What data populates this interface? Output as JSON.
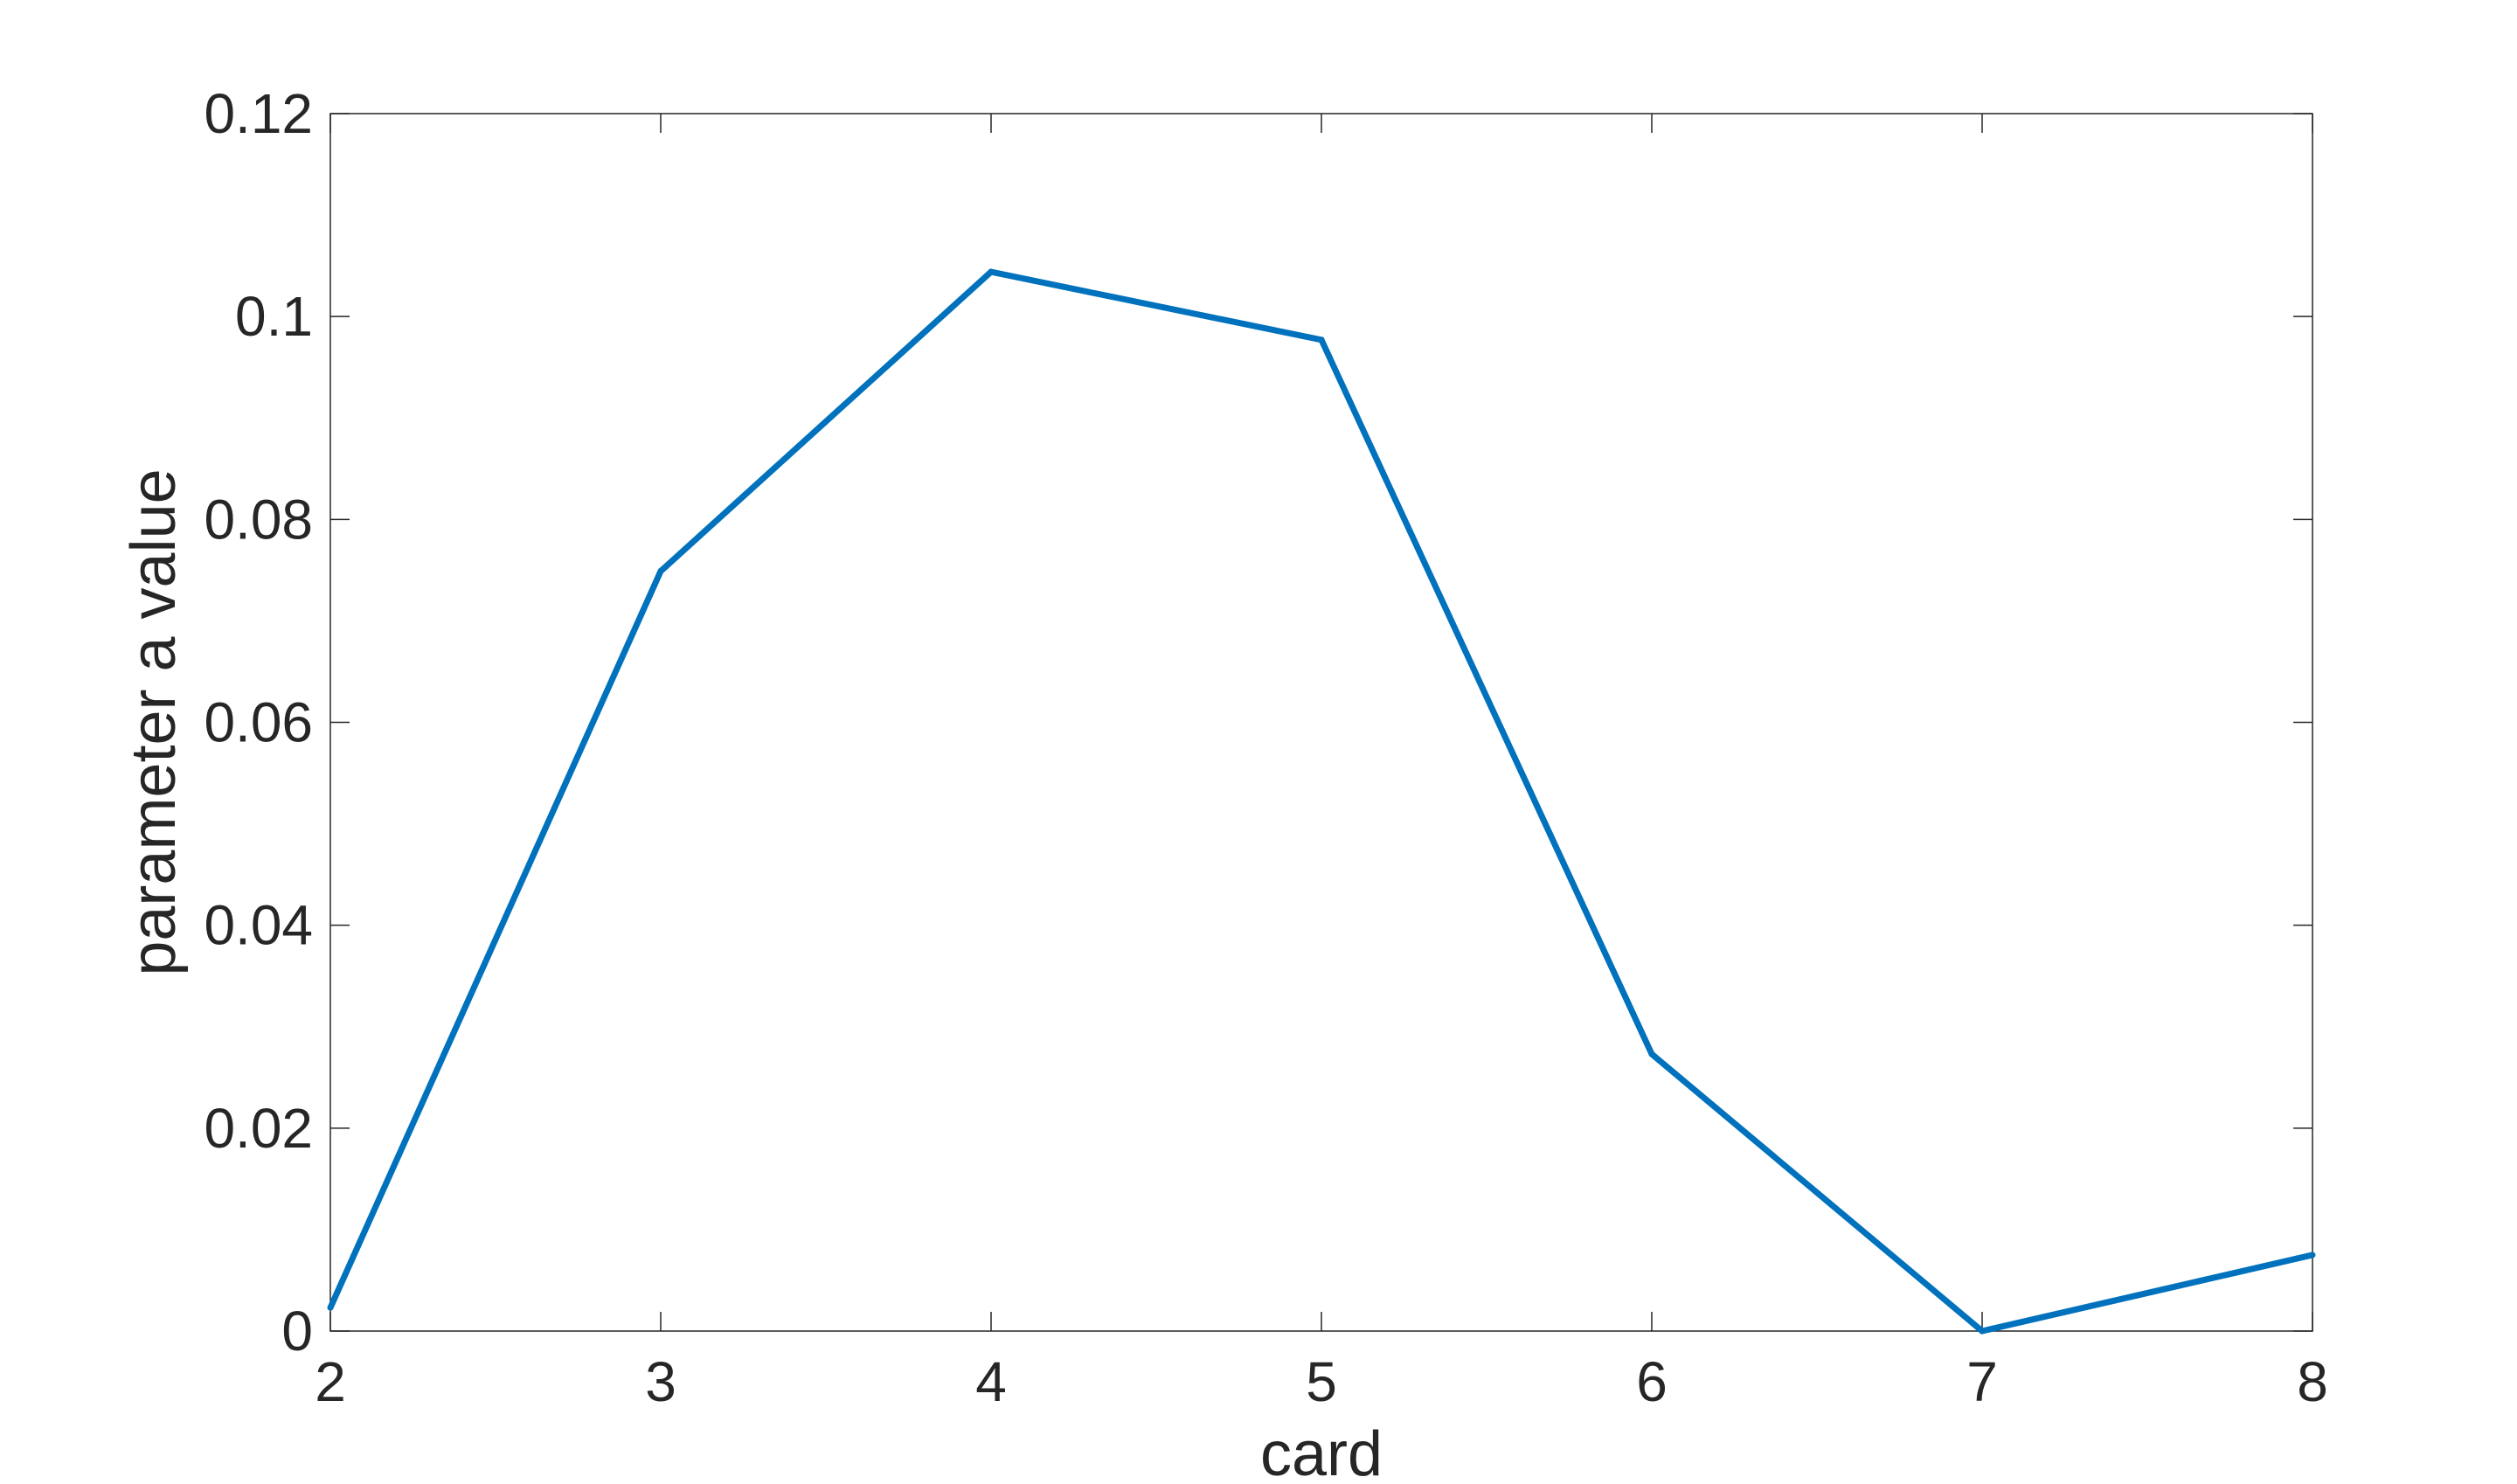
{
  "chart_data": {
    "type": "line",
    "title": "",
    "xlabel": "card",
    "ylabel": "parameter a value",
    "xlim": [
      2,
      8
    ],
    "ylim": [
      0,
      0.12
    ],
    "xticks": [
      "2",
      "3",
      "4",
      "5",
      "6",
      "7",
      "8"
    ],
    "yticks": [
      "0",
      "0.02",
      "0.04",
      "0.06",
      "0.08",
      "0.1",
      "0.12"
    ],
    "grid": false,
    "legend": "none",
    "line_color": "#0072BD",
    "axis_color": "#262626",
    "series": [
      {
        "x": [
          2,
          3,
          4,
          5,
          6,
          7,
          8
        ],
        "values": [
          0.0023,
          0.0749,
          0.1044,
          0.0977,
          0.0273,
          0.0,
          0.0075
        ]
      }
    ]
  }
}
